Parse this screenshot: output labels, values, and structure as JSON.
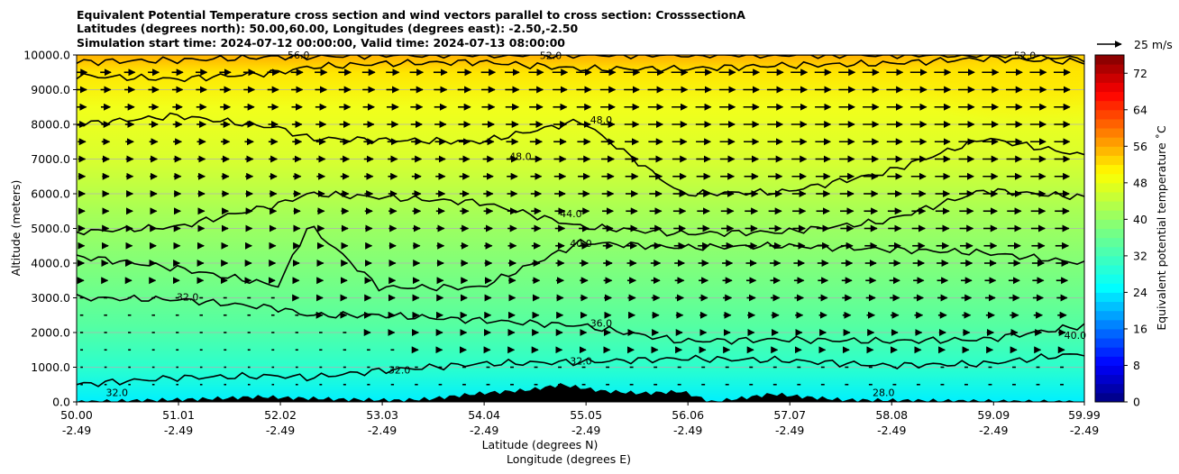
{
  "chart_data": {
    "type": "heatmap",
    "title": [
      "Equivalent Potential Temperature cross section and wind vectors parallel to cross section: CrosssectionA",
      "Latitudes (degrees north): 50.00,60.00, Longitudes (degrees east): -2.50,-2.50",
      "Simulation start time: 2024-07-12 00:00:00, Valid time: 2024-07-13 08:00:00"
    ],
    "ylabel": "Altitude (meters)",
    "xlabel_lines": [
      "Latitude (degrees N)",
      "Longitude (degrees E)"
    ],
    "ylim": [
      0,
      10000
    ],
    "yticks": [
      "0.0",
      "1000.0",
      "2000.0",
      "3000.0",
      "4000.0",
      "5000.0",
      "6000.0",
      "7000.0",
      "8000.0",
      "9000.0",
      "10000.0"
    ],
    "xlim": [
      50.0,
      59.99
    ],
    "xticks": [
      {
        "lat": "50.00",
        "lon": "-2.49"
      },
      {
        "lat": "51.01",
        "lon": "-2.49"
      },
      {
        "lat": "52.02",
        "lon": "-2.49"
      },
      {
        "lat": "53.03",
        "lon": "-2.49"
      },
      {
        "lat": "54.04",
        "lon": "-2.49"
      },
      {
        "lat": "55.05",
        "lon": "-2.49"
      },
      {
        "lat": "56.06",
        "lon": "-2.49"
      },
      {
        "lat": "57.07",
        "lon": "-2.49"
      },
      {
        "lat": "58.08",
        "lon": "-2.49"
      },
      {
        "lat": "59.09",
        "lon": "-2.49"
      },
      {
        "lat": "59.99",
        "lon": "-2.49"
      }
    ],
    "colorbar": {
      "label": "Equivalent potential temperature ˚C",
      "range": [
        0,
        76
      ],
      "ticks": [
        "0",
        "8",
        "16",
        "24",
        "32",
        "40",
        "48",
        "56",
        "64",
        "72"
      ]
    },
    "quiver_key": {
      "label": "25 m/s"
    },
    "contour_levels": [
      {
        "level": 28.0,
        "label": "28.0"
      },
      {
        "level": 32.0,
        "label": "32.0"
      },
      {
        "level": 36.0,
        "label": "36.0"
      },
      {
        "level": 40.0,
        "label": "40.0"
      },
      {
        "level": 44.0,
        "label": "44.0"
      },
      {
        "level": 48.0,
        "label": "48.0"
      },
      {
        "level": 52.0,
        "label": "52.0"
      },
      {
        "level": 56.0,
        "label": "56.0"
      }
    ],
    "contour_heights_m": {
      "lat": [
        50.0,
        51.0,
        52.0,
        52.3,
        53.0,
        54.0,
        55.0,
        56.0,
        57.0,
        58.0,
        59.0,
        59.99
      ],
      "c32": [
        500,
        700,
        750,
        700,
        900,
        1100,
        1150,
        1250,
        1200,
        1050,
        1100,
        1400
      ],
      "c36": [
        3000,
        2950,
        2700,
        2500,
        2500,
        2350,
        2200,
        1750,
        1800,
        1750,
        1800,
        2200
      ],
      "c40": [
        4200,
        3850,
        3350,
        5100,
        3300,
        3300,
        4600,
        4450,
        4500,
        4400,
        4300,
        4000
      ],
      "c44": [
        4900,
        5050,
        5700,
        6000,
        5900,
        5750,
        5050,
        4850,
        4900,
        5200,
        6100,
        5900
      ],
      "c48": [
        8000,
        8250,
        7900,
        7600,
        7550,
        7500,
        8100,
        6000,
        6050,
        6600,
        7600,
        7100
      ],
      "c52": [
        9400,
        9300,
        9500,
        9650,
        9750,
        9800,
        9600,
        9600,
        9700,
        9750,
        9900,
        9800
      ],
      "c56": [
        9800,
        9850,
        9950,
        9950,
        10000,
        10000,
        10000,
        10000,
        10000,
        10000,
        10000,
        9900
      ]
    },
    "terrain_m": {
      "lat": [
        50.0,
        51.4,
        51.8,
        52.1,
        52.6,
        53.2,
        53.5,
        54.0,
        54.5,
        54.8,
        55.2,
        55.6,
        56.0,
        56.3,
        56.9,
        57.2,
        57.6,
        59.99
      ],
      "height": [
        0,
        100,
        150,
        120,
        80,
        50,
        90,
        250,
        350,
        500,
        320,
        250,
        300,
        0,
        230,
        150,
        60,
        0
      ]
    },
    "wind_arrow_lengths_ms": {
      "lat": [
        50.0,
        52.0,
        54.0,
        56.0,
        58.0,
        59.99
      ],
      "z_1000": [
        2,
        2,
        3,
        3,
        3,
        3
      ],
      "z_3000": [
        3,
        3,
        5,
        7,
        8,
        9
      ],
      "z_5000": [
        5,
        5,
        7,
        10,
        11,
        12
      ],
      "z_7000": [
        6,
        7,
        9,
        12,
        13,
        13
      ],
      "z_9500": [
        9,
        10,
        12,
        14,
        14,
        14
      ]
    }
  }
}
